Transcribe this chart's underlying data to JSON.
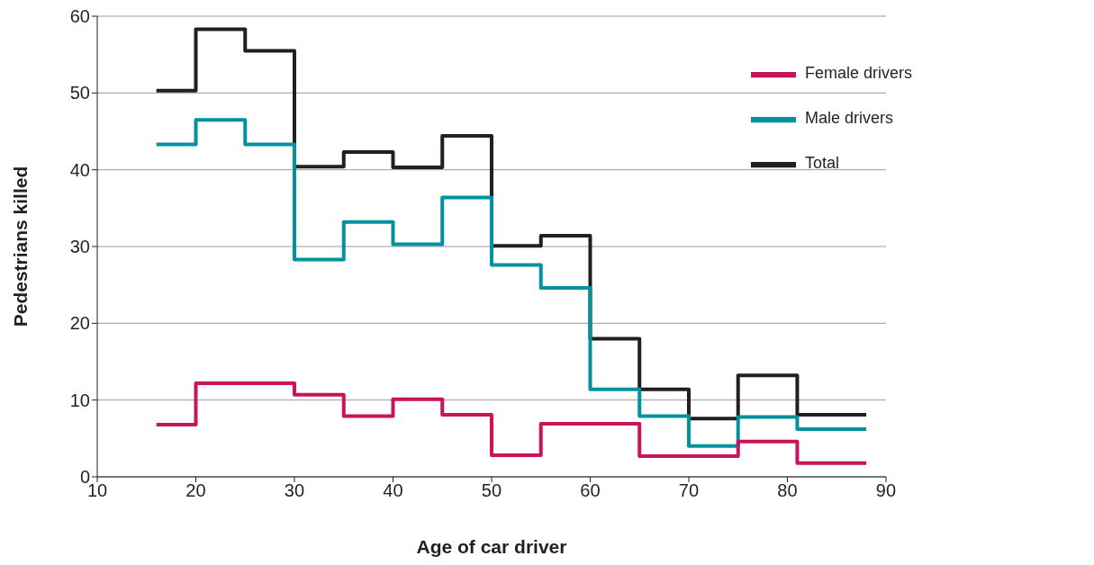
{
  "chart_data": {
    "type": "step",
    "xlabel": "Age of car driver",
    "ylabel": "Pedestrians killed",
    "xlim": [
      10,
      90
    ],
    "xticks": [
      10,
      20,
      30,
      40,
      50,
      60,
      70,
      80,
      90
    ],
    "ylim": [
      0,
      60
    ],
    "yticks": [
      0,
      10,
      20,
      30,
      40,
      50,
      60
    ],
    "grid": "y",
    "legend": "top right",
    "marker": "none",
    "line_style": "solid",
    "series": [
      {
        "name": "Total",
        "color": "#231f20",
        "x": [
          16,
          20,
          25,
          30,
          35,
          40,
          45,
          50,
          55,
          60,
          65,
          70,
          75,
          81,
          88
        ],
        "values": [
          50.3,
          58.3,
          55.5,
          40.4,
          42.3,
          40.3,
          44.4,
          30.1,
          31.4,
          18,
          11.4,
          7.6,
          13.2,
          8.1,
          8.1
        ]
      },
      {
        "name": "Male drivers",
        "color": "#00939e",
        "x": [
          16,
          20,
          25,
          30,
          35,
          40,
          45,
          50,
          55,
          60,
          65,
          70,
          75,
          81,
          88
        ],
        "values": [
          43.3,
          46.5,
          43.3,
          28.3,
          33.2,
          30.3,
          36.4,
          27.6,
          24.6,
          11.4,
          7.9,
          4,
          7.8,
          6.2,
          6.2
        ]
      },
      {
        "name": "Female drivers",
        "color": "#c8145a",
        "x": [
          16,
          20,
          30,
          35,
          40,
          45,
          50,
          55,
          65,
          75,
          81,
          88
        ],
        "values": [
          6.8,
          12.2,
          10.7,
          7.9,
          10.1,
          8.1,
          2.8,
          6.9,
          2.7,
          4.6,
          1.8,
          1.8
        ]
      }
    ]
  }
}
